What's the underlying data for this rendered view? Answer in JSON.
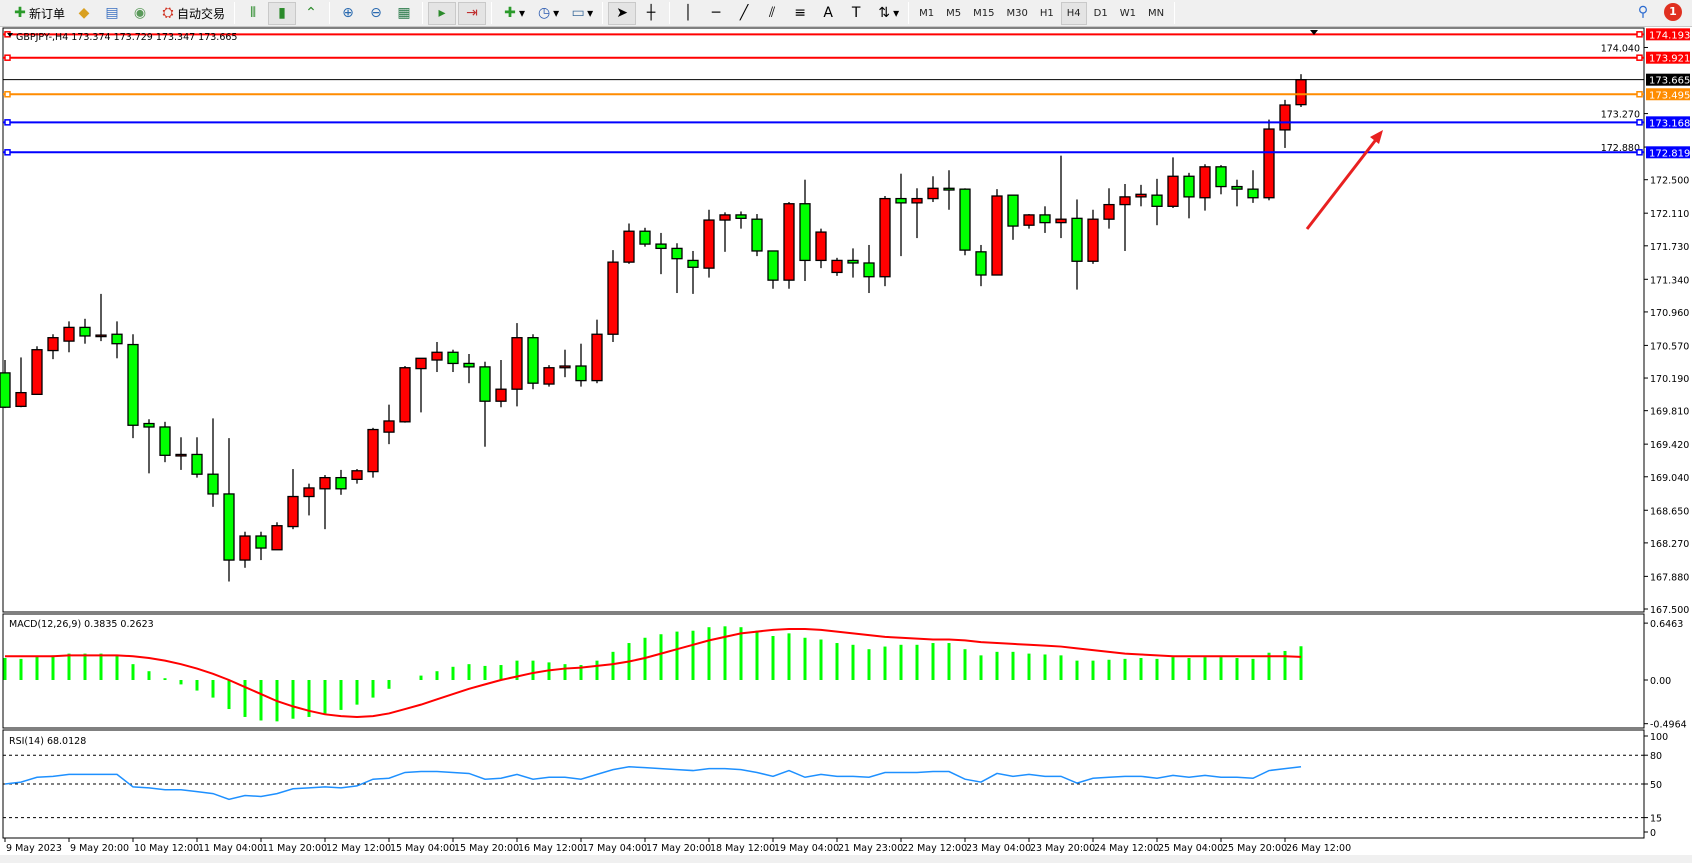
{
  "toolbar": {
    "new_order_label": "新订单",
    "auto_trading_label": "自动交易",
    "icons": [
      "new-order-icon",
      "market-watch-icon",
      "navigator-icon",
      "signals-icon",
      "auto-trading-icon",
      "bar-chart-icon",
      "candlestick-icon",
      "line-chart-icon",
      "zoom-in-icon",
      "zoom-out-icon",
      "tile-windows-icon",
      "autoscroll-icon",
      "chart-shift-icon",
      "indicators-icon",
      "periods-icon",
      "templates-icon",
      "cursor-icon",
      "crosshair-icon",
      "vertical-line-icon",
      "horizontal-line-icon",
      "trendline-icon",
      "equidistant-channel-icon",
      "fibonacci-icon",
      "text-icon",
      "text-label-icon",
      "arrows-icon"
    ],
    "timeframes": [
      "M1",
      "M5",
      "M15",
      "M30",
      "H1",
      "H4",
      "D1",
      "W1",
      "MN"
    ],
    "active_timeframe": "H4",
    "notification_count": "1"
  },
  "chart": {
    "symbol_info": "GBPJPY-,H4  173.374 173.729 173.347 173.665",
    "bull_color": "#ff0000",
    "bear_color": "#00ff00",
    "price_ticks": [
      "174.040",
      "173.270",
      "172.880",
      "172.500",
      "172.110",
      "171.730",
      "171.340",
      "170.960",
      "170.570",
      "170.190",
      "169.810",
      "169.420",
      "169.040",
      "168.650",
      "168.270",
      "167.880",
      "167.500"
    ],
    "levels": [
      {
        "price": "174.193",
        "color": "#ff0000"
      },
      {
        "price": "173.921",
        "color": "#ff0000"
      },
      {
        "price": "173.665",
        "color": "#000000"
      },
      {
        "price": "173.495",
        "color": "#ff8c00"
      },
      {
        "price": "173.168",
        "color": "#0000ff"
      },
      {
        "price": "172.819",
        "color": "#0000ff"
      }
    ],
    "annotation_arrow_color": "#e82020",
    "time_labels": [
      "9 May 2023",
      "9 May 20:00",
      "10 May 12:00",
      "11 May 04:00",
      "11 May 20:00",
      "12 May 12:00",
      "15 May 04:00",
      "15 May 20:00",
      "16 May 12:00",
      "17 May 04:00",
      "17 May 20:00",
      "18 May 12:00",
      "19 May 04:00",
      "21 May 23:00",
      "22 May 12:00",
      "23 May 04:00",
      "23 May 20:00",
      "24 May 12:00",
      "25 May 04:00",
      "25 May 20:00",
      "26 May 12:00"
    ]
  },
  "macd": {
    "label": "MACD(12,26,9) 0.3835 0.2623",
    "ticks": [
      "0.6463",
      "0.00",
      "-0.4964"
    ],
    "hist_color": "#00ff00",
    "signal_color": "#ff0000"
  },
  "rsi": {
    "label": "RSI(14) 68.0128",
    "ticks": [
      "100",
      "80",
      "50",
      "15",
      "0"
    ],
    "line_color": "#1e90ff"
  },
  "chart_data": [
    {
      "type": "candlestick",
      "ohlc": [
        [
          170.25,
          170.4,
          169.84,
          169.85
        ],
        [
          169.86,
          170.43,
          169.85,
          170.02
        ],
        [
          170.0,
          170.56,
          170.0,
          170.52
        ],
        [
          170.51,
          170.7,
          170.41,
          170.66
        ],
        [
          170.62,
          170.85,
          170.49,
          170.78
        ],
        [
          170.78,
          170.88,
          170.59,
          170.68
        ],
        [
          170.69,
          171.17,
          170.62,
          170.69
        ],
        [
          170.7,
          170.85,
          170.42,
          170.59
        ],
        [
          170.58,
          170.7,
          169.49,
          169.64
        ],
        [
          169.66,
          169.71,
          169.08,
          169.62
        ],
        [
          169.62,
          169.68,
          169.21,
          169.29
        ],
        [
          169.3,
          169.5,
          169.12,
          169.3
        ],
        [
          169.3,
          169.5,
          169.03,
          169.07
        ],
        [
          169.07,
          169.72,
          168.69,
          168.84
        ],
        [
          168.84,
          169.49,
          167.82,
          168.07
        ],
        [
          168.07,
          168.4,
          167.98,
          168.35
        ],
        [
          168.35,
          168.4,
          168.07,
          168.21
        ],
        [
          168.19,
          168.51,
          168.19,
          168.47
        ],
        [
          168.46,
          169.13,
          168.43,
          168.81
        ],
        [
          168.81,
          168.96,
          168.59,
          168.91
        ],
        [
          168.9,
          169.06,
          168.43,
          169.03
        ],
        [
          169.03,
          169.12,
          168.83,
          168.9
        ],
        [
          169.01,
          169.13,
          168.96,
          169.11
        ],
        [
          169.1,
          169.61,
          169.03,
          169.59
        ],
        [
          169.56,
          169.88,
          169.42,
          169.69
        ],
        [
          169.68,
          170.33,
          169.67,
          170.31
        ],
        [
          170.3,
          170.42,
          169.79,
          170.42
        ],
        [
          170.4,
          170.61,
          170.26,
          170.49
        ],
        [
          170.49,
          170.52,
          170.26,
          170.36
        ],
        [
          170.36,
          170.47,
          170.13,
          170.32
        ],
        [
          170.32,
          170.38,
          169.39,
          169.92
        ],
        [
          169.92,
          170.4,
          169.85,
          170.06
        ],
        [
          170.06,
          170.83,
          169.86,
          170.66
        ],
        [
          170.66,
          170.7,
          170.06,
          170.13
        ],
        [
          170.12,
          170.34,
          170.09,
          170.31
        ],
        [
          170.31,
          170.52,
          170.2,
          170.33
        ],
        [
          170.33,
          170.59,
          170.09,
          170.16
        ],
        [
          170.16,
          170.87,
          170.13,
          170.7
        ],
        [
          170.7,
          171.68,
          170.61,
          171.54
        ],
        [
          171.54,
          171.99,
          171.52,
          171.9
        ],
        [
          171.9,
          171.94,
          171.72,
          171.75
        ],
        [
          171.75,
          171.88,
          171.4,
          171.7
        ],
        [
          171.7,
          171.76,
          171.18,
          171.58
        ],
        [
          171.56,
          171.67,
          171.17,
          171.48
        ],
        [
          171.47,
          172.15,
          171.36,
          172.03
        ],
        [
          172.03,
          172.12,
          171.66,
          172.09
        ],
        [
          172.09,
          172.13,
          171.93,
          172.05
        ],
        [
          172.04,
          172.1,
          171.61,
          171.67
        ],
        [
          171.67,
          171.67,
          171.23,
          171.33
        ],
        [
          171.33,
          172.24,
          171.23,
          172.22
        ],
        [
          172.22,
          172.5,
          171.32,
          171.56
        ],
        [
          171.56,
          171.93,
          171.47,
          171.89
        ],
        [
          171.42,
          171.59,
          171.38,
          171.56
        ],
        [
          171.56,
          171.7,
          171.36,
          171.53
        ],
        [
          171.53,
          171.74,
          171.18,
          171.37
        ],
        [
          171.37,
          172.31,
          171.26,
          172.28
        ],
        [
          172.28,
          172.57,
          171.61,
          172.23
        ],
        [
          172.23,
          172.4,
          171.82,
          172.28
        ],
        [
          172.28,
          172.54,
          172.24,
          172.4
        ],
        [
          172.4,
          172.61,
          172.15,
          172.38
        ],
        [
          172.39,
          172.4,
          171.62,
          171.68
        ],
        [
          171.66,
          171.74,
          171.26,
          171.39
        ],
        [
          171.39,
          172.39,
          171.39,
          172.31
        ],
        [
          172.32,
          172.32,
          171.8,
          171.96
        ],
        [
          171.97,
          172.1,
          171.93,
          172.09
        ],
        [
          172.09,
          172.19,
          171.88,
          172.0
        ],
        [
          172.0,
          172.78,
          171.82,
          172.04
        ],
        [
          172.05,
          172.27,
          171.22,
          171.55
        ],
        [
          171.55,
          172.15,
          171.52,
          172.04
        ],
        [
          172.04,
          172.4,
          171.93,
          172.21
        ],
        [
          172.21,
          172.45,
          171.67,
          172.3
        ],
        [
          172.3,
          172.44,
          172.19,
          172.33
        ],
        [
          172.32,
          172.51,
          171.97,
          172.19
        ],
        [
          172.19,
          172.76,
          172.17,
          172.54
        ],
        [
          172.54,
          172.58,
          172.05,
          172.3
        ],
        [
          172.29,
          172.68,
          172.14,
          172.65
        ],
        [
          172.65,
          172.67,
          172.33,
          172.42
        ],
        [
          172.42,
          172.5,
          172.19,
          172.39
        ],
        [
          172.39,
          172.61,
          172.23,
          172.29
        ],
        [
          172.29,
          173.2,
          172.26,
          173.09
        ],
        [
          173.08,
          173.43,
          172.87,
          173.37
        ],
        [
          173.374,
          173.729,
          173.347,
          173.665
        ]
      ],
      "ylim": [
        167.5,
        174.3
      ]
    },
    {
      "type": "bar+line",
      "name": "MACD(12,26,9)",
      "main": [
        0.25,
        0.24,
        0.27,
        0.28,
        0.3,
        0.3,
        0.3,
        0.28,
        0.18,
        0.1,
        0.02,
        -0.05,
        -0.12,
        -0.2,
        -0.33,
        -0.42,
        -0.46,
        -0.47,
        -0.44,
        -0.42,
        -0.38,
        -0.34,
        -0.28,
        -0.2,
        -0.1,
        0.0,
        0.05,
        0.1,
        0.15,
        0.18,
        0.16,
        0.17,
        0.22,
        0.22,
        0.2,
        0.18,
        0.17,
        0.22,
        0.32,
        0.42,
        0.48,
        0.52,
        0.55,
        0.56,
        0.6,
        0.61,
        0.6,
        0.56,
        0.5,
        0.53,
        0.48,
        0.46,
        0.42,
        0.4,
        0.35,
        0.38,
        0.4,
        0.4,
        0.42,
        0.42,
        0.35,
        0.28,
        0.32,
        0.32,
        0.3,
        0.29,
        0.28,
        0.22,
        0.22,
        0.23,
        0.24,
        0.25,
        0.24,
        0.26,
        0.25,
        0.26,
        0.26,
        0.25,
        0.24,
        0.31,
        0.33,
        0.3835
      ],
      "signal": [
        0.27,
        0.27,
        0.27,
        0.27,
        0.28,
        0.28,
        0.28,
        0.28,
        0.27,
        0.25,
        0.22,
        0.18,
        0.13,
        0.07,
        0.0,
        -0.08,
        -0.16,
        -0.24,
        -0.3,
        -0.35,
        -0.39,
        -0.41,
        -0.42,
        -0.41,
        -0.38,
        -0.33,
        -0.28,
        -0.22,
        -0.16,
        -0.1,
        -0.05,
        0.0,
        0.04,
        0.08,
        0.11,
        0.13,
        0.14,
        0.16,
        0.18,
        0.21,
        0.25,
        0.3,
        0.35,
        0.4,
        0.45,
        0.49,
        0.53,
        0.55,
        0.57,
        0.58,
        0.58,
        0.57,
        0.55,
        0.53,
        0.51,
        0.49,
        0.48,
        0.47,
        0.46,
        0.46,
        0.45,
        0.43,
        0.42,
        0.41,
        0.4,
        0.39,
        0.38,
        0.36,
        0.34,
        0.32,
        0.3,
        0.29,
        0.28,
        0.27,
        0.27,
        0.27,
        0.27,
        0.27,
        0.27,
        0.27,
        0.27,
        0.2623
      ],
      "ylim": [
        -0.4964,
        0.6463
      ]
    },
    {
      "type": "line",
      "name": "RSI(14)",
      "values": [
        50,
        52,
        57,
        58,
        60,
        60,
        60,
        60,
        47,
        46,
        44,
        44,
        42,
        40,
        34,
        38,
        37,
        40,
        45,
        46,
        47,
        46,
        48,
        55,
        56,
        62,
        63,
        63,
        62,
        61,
        55,
        56,
        60,
        55,
        57,
        57,
        55,
        60,
        65,
        68,
        67,
        66,
        65,
        64,
        66,
        66,
        65,
        62,
        58,
        64,
        57,
        60,
        58,
        58,
        57,
        62,
        62,
        62,
        63,
        63,
        55,
        52,
        61,
        58,
        60,
        58,
        58,
        51,
        56,
        57,
        58,
        58,
        56,
        59,
        57,
        59,
        57,
        57,
        56,
        64,
        66,
        68.0128
      ],
      "levels": [
        80,
        50,
        15
      ],
      "ylim": [
        0,
        100
      ]
    }
  ]
}
